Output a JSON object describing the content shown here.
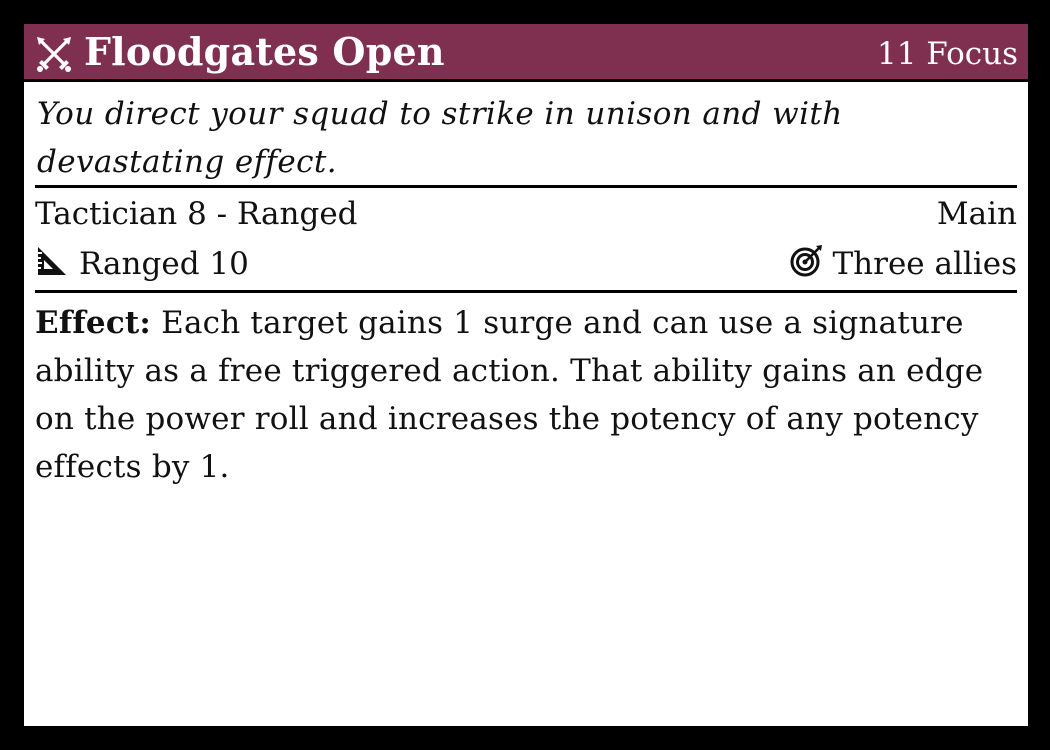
{
  "ability": {
    "name": "Floodgates Open",
    "cost": "11 Focus",
    "icon": "crossed-swords-icon",
    "flavor": "You direct your squad to strike in unison and with devastating effect.",
    "keywords": "Tactician 8 - Ranged",
    "action_type": "Main",
    "distance_icon": "ruler-triangle-icon",
    "distance": "Ranged 10",
    "target_icon": "target-icon",
    "target": "Three allies",
    "effect_label": "Effect:",
    "effect_text": "Each target gains 1 surge and can use a signature ability as a free triggered action. That ability gains an edge on the power roll and increases the potency of any potency effects by 1."
  },
  "colors": {
    "header_bg": "#7f2f50",
    "header_text": "#ffffff",
    "frame": "#000000",
    "card_bg": "#ffffff"
  }
}
